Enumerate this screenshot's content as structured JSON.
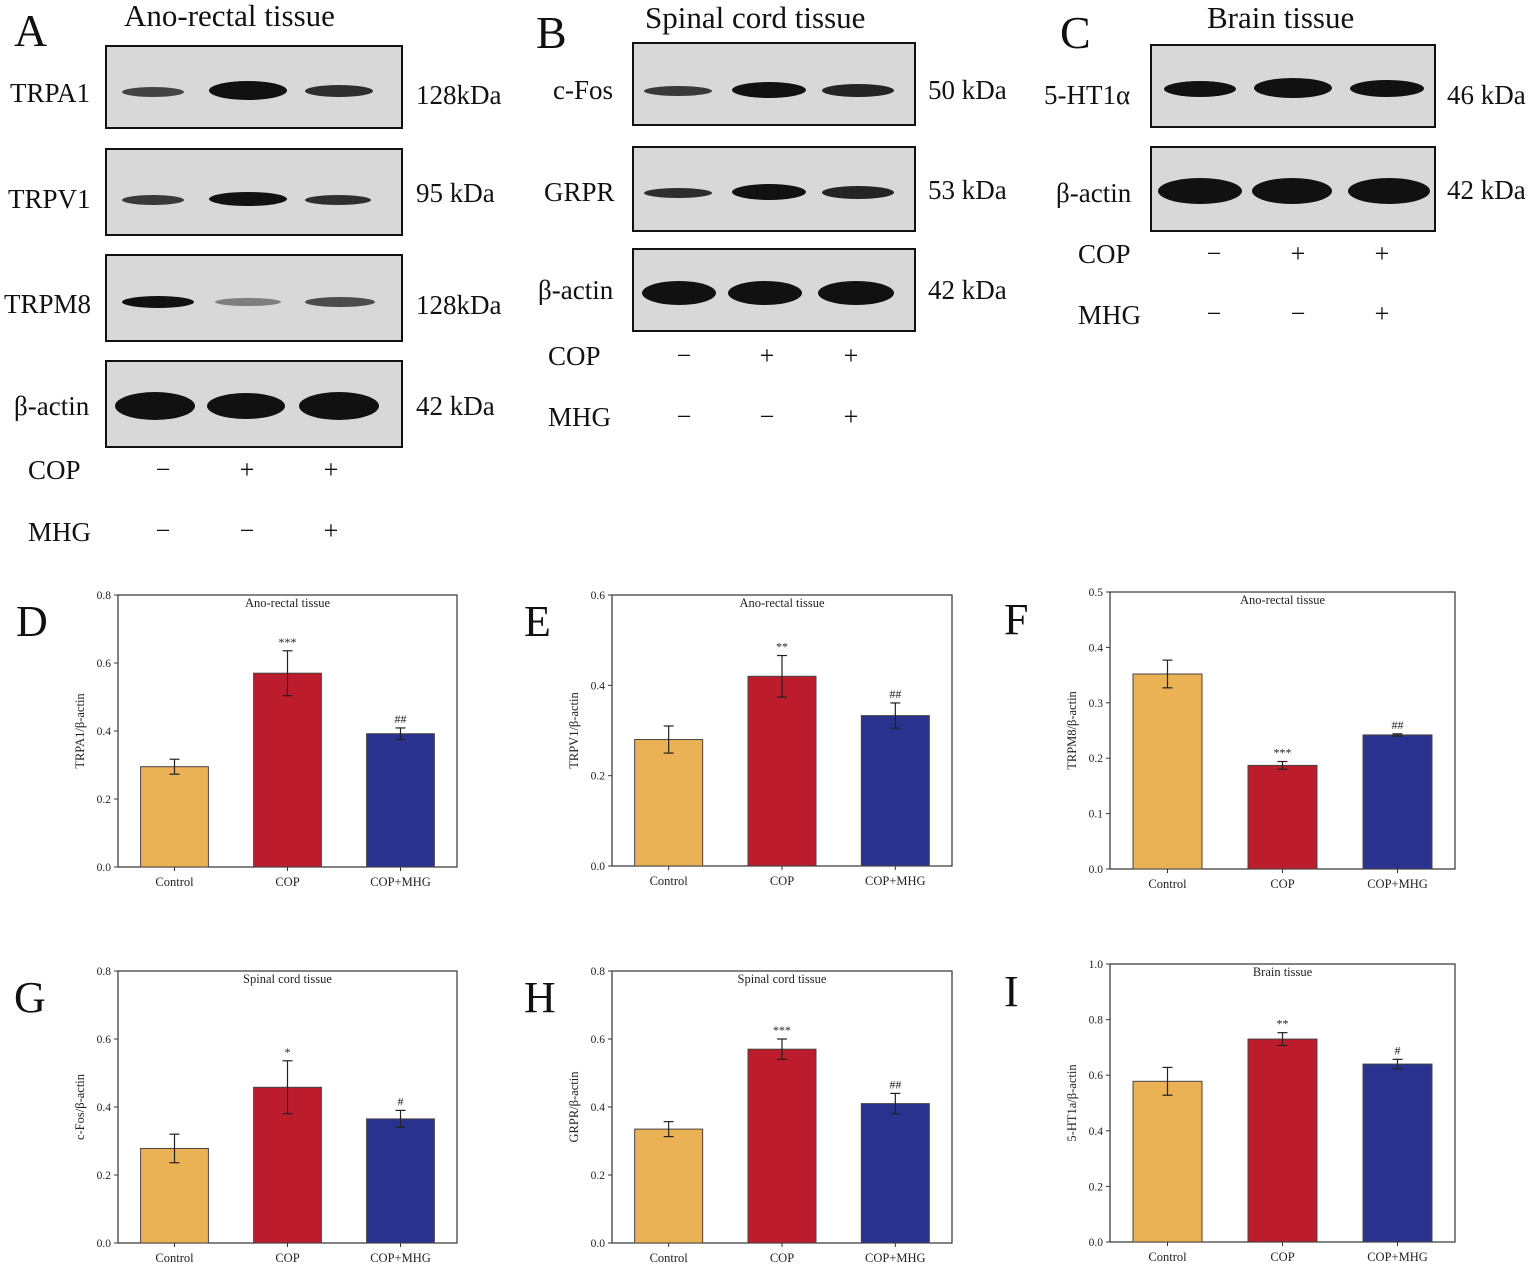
{
  "western_blots": [
    {
      "panel": "A",
      "title": "Ano-rectal tissue",
      "blots": [
        {
          "protein": "TRPA1",
          "kda": "128kDa"
        },
        {
          "protein": "TRPV1",
          "kda": "95 kDa"
        },
        {
          "protein": "TRPM8",
          "kda": "128kDa"
        },
        {
          "protein": "β-actin",
          "kda": "42 kDa"
        }
      ],
      "conditions": [
        {
          "label": "COP",
          "signs": [
            "−",
            "+",
            "+"
          ]
        },
        {
          "label": "MHG",
          "signs": [
            "−",
            "−",
            "+"
          ]
        }
      ]
    },
    {
      "panel": "B",
      "title": "Spinal cord tissue",
      "blots": [
        {
          "protein": "c-Fos",
          "kda": "50 kDa"
        },
        {
          "protein": "GRPR",
          "kda": "53 kDa"
        },
        {
          "protein": "β-actin",
          "kda": "42 kDa"
        }
      ],
      "conditions": [
        {
          "label": "COP",
          "signs": [
            "−",
            "+",
            "+"
          ]
        },
        {
          "label": "MHG",
          "signs": [
            "−",
            "−",
            "+"
          ]
        }
      ]
    },
    {
      "panel": "C",
      "title": "Brain tissue",
      "blots": [
        {
          "protein": "5-HT1α",
          "kda": "46 kDa"
        },
        {
          "protein": "β-actin",
          "kda": "42 kDa"
        }
      ],
      "conditions": [
        {
          "label": "COP",
          "signs": [
            "−",
            "+",
            "+"
          ]
        },
        {
          "label": "MHG",
          "signs": [
            "−",
            "−",
            "+"
          ]
        }
      ]
    }
  ],
  "colors": {
    "control": "#EBB155",
    "cop": "#BD1C2C",
    "cop_mhg": "#29338F",
    "blot_bg": "#d8d8d8",
    "band": "#111111"
  },
  "chart_data": [
    {
      "panel": "D",
      "type": "bar",
      "title": "Ano-rectal tissue",
      "ylabel": "TRPA1/β-actin",
      "categories": [
        "Control",
        "COP",
        "COP+MHG"
      ],
      "values": [
        0.295,
        0.57,
        0.392
      ],
      "errors": [
        0.022,
        0.066,
        0.017
      ],
      "annotations": [
        "",
        "***",
        "##"
      ],
      "ylim": [
        0,
        0.8
      ],
      "yticks": [
        "0.0",
        "0.2",
        "0.4",
        "0.6",
        "0.8"
      ]
    },
    {
      "panel": "E",
      "type": "bar",
      "title": "Ano-rectal tissue",
      "ylabel": "TRPV1/β-actin",
      "categories": [
        "Control",
        "COP",
        "COP+MHG"
      ],
      "values": [
        0.28,
        0.42,
        0.333
      ],
      "errors": [
        0.03,
        0.046,
        0.028
      ],
      "annotations": [
        "",
        "**",
        "##"
      ],
      "ylim": [
        0,
        0.6
      ],
      "yticks": [
        "0.0",
        "0.2",
        "0.4",
        "0.6"
      ]
    },
    {
      "panel": "F",
      "type": "bar",
      "title": "Ano-rectal tissue",
      "ylabel": "TRPM8/β-actin",
      "categories": [
        "Control",
        "COP",
        "COP+MHG"
      ],
      "values": [
        0.352,
        0.187,
        0.242
      ],
      "errors": [
        0.025,
        0.007,
        0.002
      ],
      "annotations": [
        "",
        "***",
        "##"
      ],
      "ylim": [
        0,
        0.5
      ],
      "yticks": [
        "0.0",
        "0.1",
        "0.2",
        "0.3",
        "0.4",
        "0.5"
      ]
    },
    {
      "panel": "G",
      "type": "bar",
      "title": "Spinal cord tissue",
      "ylabel": "c-Fos/β-actin",
      "categories": [
        "Control",
        "COP",
        "COP+MHG"
      ],
      "values": [
        0.278,
        0.458,
        0.365
      ],
      "errors": [
        0.042,
        0.078,
        0.025
      ],
      "annotations": [
        "",
        "*",
        "#"
      ],
      "ylim": [
        0,
        0.8
      ],
      "yticks": [
        "0.0",
        "0.2",
        "0.4",
        "0.6",
        "0.8"
      ]
    },
    {
      "panel": "H",
      "type": "bar",
      "title": "Spinal cord tissue",
      "ylabel": "GRPR/β-actin",
      "categories": [
        "Control",
        "COP",
        "COP+MHG"
      ],
      "values": [
        0.335,
        0.57,
        0.41
      ],
      "errors": [
        0.022,
        0.03,
        0.03
      ],
      "annotations": [
        "",
        "***",
        "##"
      ],
      "ylim": [
        0,
        0.8
      ],
      "yticks": [
        "0.0",
        "0.2",
        "0.4",
        "0.6",
        "0.8"
      ]
    },
    {
      "panel": "I",
      "type": "bar",
      "title": "Brain tissue",
      "ylabel": "5-HT1a/β-actin",
      "categories": [
        "Control",
        "COP",
        "COP+MHG"
      ],
      "values": [
        0.578,
        0.73,
        0.64
      ],
      "errors": [
        0.05,
        0.023,
        0.017
      ],
      "annotations": [
        "",
        "**",
        "#"
      ],
      "ylim": [
        0,
        1.0
      ],
      "yticks": [
        "0.0",
        "0.2",
        "0.4",
        "0.6",
        "0.8",
        "1.0"
      ]
    }
  ]
}
